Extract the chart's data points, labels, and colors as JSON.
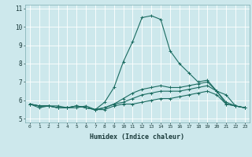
{
  "title": "",
  "xlabel": "Humidex (Indice chaleur)",
  "xlim": [
    -0.5,
    23.5
  ],
  "ylim": [
    4.8,
    11.2
  ],
  "xtick_labels": [
    "0",
    "1",
    "2",
    "3",
    "4",
    "5",
    "6",
    "7",
    "8",
    "9",
    "10",
    "11",
    "12",
    "13",
    "14",
    "15",
    "16",
    "17",
    "18",
    "19",
    "20",
    "21",
    "22",
    "23"
  ],
  "ytick_labels": [
    "5",
    "6",
    "7",
    "8",
    "9",
    "10",
    "11"
  ],
  "bg_color": "#cde8ec",
  "grid_color": "#ffffff",
  "line_color": "#1a6b60",
  "lines": [
    [
      5.8,
      5.6,
      5.7,
      5.6,
      5.6,
      5.7,
      5.6,
      5.5,
      5.9,
      6.7,
      8.1,
      9.2,
      10.5,
      10.6,
      10.4,
      8.7,
      8.0,
      7.5,
      7.0,
      7.1,
      6.5,
      6.3,
      5.7,
      5.6
    ],
    [
      5.8,
      5.7,
      5.7,
      5.7,
      5.6,
      5.6,
      5.7,
      5.5,
      5.6,
      5.8,
      6.1,
      6.4,
      6.6,
      6.7,
      6.8,
      6.7,
      6.7,
      6.8,
      6.9,
      7.0,
      6.5,
      5.8,
      5.7,
      5.6
    ],
    [
      5.8,
      5.7,
      5.7,
      5.6,
      5.6,
      5.7,
      5.6,
      5.5,
      5.6,
      5.8,
      5.9,
      6.1,
      6.3,
      6.4,
      6.5,
      6.5,
      6.5,
      6.6,
      6.7,
      6.8,
      6.5,
      5.9,
      5.7,
      5.6
    ],
    [
      5.8,
      5.7,
      5.7,
      5.6,
      5.6,
      5.7,
      5.6,
      5.5,
      5.5,
      5.7,
      5.8,
      5.8,
      5.9,
      6.0,
      6.1,
      6.1,
      6.2,
      6.3,
      6.4,
      6.5,
      6.3,
      5.8,
      5.7,
      5.6
    ]
  ]
}
